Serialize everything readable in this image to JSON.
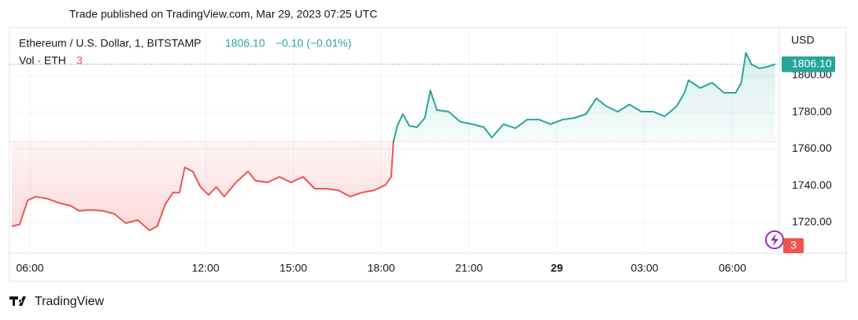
{
  "chart_data": {
    "type": "line",
    "header": "Trade published on TradingView.com, Mar 29, 2023 07:25 UTC",
    "symbol": "Ethereum / U.S. Dollar, 1, BITSTAMP",
    "last_price": {
      "value": 1806.1,
      "label": "1806.10"
    },
    "change": "−0.10 (−0.01%)",
    "volume_label": "Vol · ETH",
    "volume_value": 3,
    "currency": "USD",
    "brand": "TradingView",
    "baseline": 1764,
    "up_color": "#26a69a",
    "down_color": "#ef5350",
    "grid": true,
    "x": [
      5.38,
      5.65,
      5.92,
      6.19,
      6.59,
      6.99,
      7.4,
      7.67,
      8.07,
      8.47,
      8.88,
      9.28,
      9.68,
      10.08,
      10.35,
      10.62,
      10.89,
      11.11,
      11.29,
      11.56,
      11.83,
      12.1,
      12.37,
      12.64,
      13.04,
      13.45,
      13.71,
      14.12,
      14.52,
      14.92,
      15.33,
      15.73,
      16.13,
      16.54,
      16.94,
      17.34,
      17.75,
      18.15,
      18.34,
      18.42,
      18.55,
      18.74,
      18.96,
      19.22,
      19.49,
      19.68,
      19.9,
      20.3,
      20.7,
      21.11,
      21.51,
      21.78,
      22.18,
      22.58,
      22.99,
      23.39,
      23.79,
      24.2,
      24.6,
      25.0,
      25.35,
      25.68,
      26.08,
      26.48,
      26.89,
      27.29,
      27.69,
      28.1,
      28.36,
      28.5,
      28.9,
      29.31,
      29.71,
      30.11,
      30.3,
      30.46,
      30.65,
      30.92,
      31.19,
      31.46
    ],
    "values": [
      1717.9,
      1719,
      1732,
      1734,
      1733,
      1730.7,
      1729,
      1726.4,
      1726.8,
      1726.4,
      1724.7,
      1719.6,
      1721.3,
      1715.7,
      1717.9,
      1729.8,
      1736.3,
      1736.3,
      1750,
      1747.8,
      1739.3,
      1735,
      1739.3,
      1734.1,
      1741.8,
      1747.8,
      1742.7,
      1741.8,
      1744.8,
      1741.8,
      1744.8,
      1738.4,
      1738.4,
      1737.5,
      1734.1,
      1736.3,
      1737.5,
      1740.5,
      1744.8,
      1764.1,
      1772.6,
      1779,
      1772.6,
      1771.8,
      1776.9,
      1791.9,
      1781.2,
      1780.3,
      1774.8,
      1773.5,
      1771.8,
      1766.2,
      1773.5,
      1771.3,
      1776,
      1776,
      1773.5,
      1776,
      1776.9,
      1779,
      1787.6,
      1783.3,
      1780.3,
      1784.2,
      1780.3,
      1780.3,
      1777.8,
      1783.3,
      1790.6,
      1797.4,
      1793.2,
      1796.1,
      1790.6,
      1790.6,
      1796.1,
      1812.4,
      1806,
      1803.9,
      1804.7,
      1806.1
    ],
    "xlim": [
      5.3,
      31.6
    ],
    "xticks": [
      {
        "value": 6,
        "label": "06:00"
      },
      {
        "value": 12,
        "label": "12:00"
      },
      {
        "value": 15,
        "label": "15:00"
      },
      {
        "value": 18,
        "label": "18:00"
      },
      {
        "value": 21,
        "label": "21:00"
      },
      {
        "value": 24,
        "label": "29",
        "bold": true
      },
      {
        "value": 27,
        "label": "03:00"
      },
      {
        "value": 30,
        "label": "06:00"
      }
    ],
    "ylim": [
      1703.3,
      1826.1
    ],
    "yticks": [
      {
        "value": 1720,
        "label": "1720.00"
      },
      {
        "value": 1740,
        "label": "1740.00"
      },
      {
        "value": 1760,
        "label": "1760.00"
      },
      {
        "value": 1780,
        "label": "1780.00"
      },
      {
        "value": 1800,
        "label": "1800.00"
      }
    ]
  }
}
